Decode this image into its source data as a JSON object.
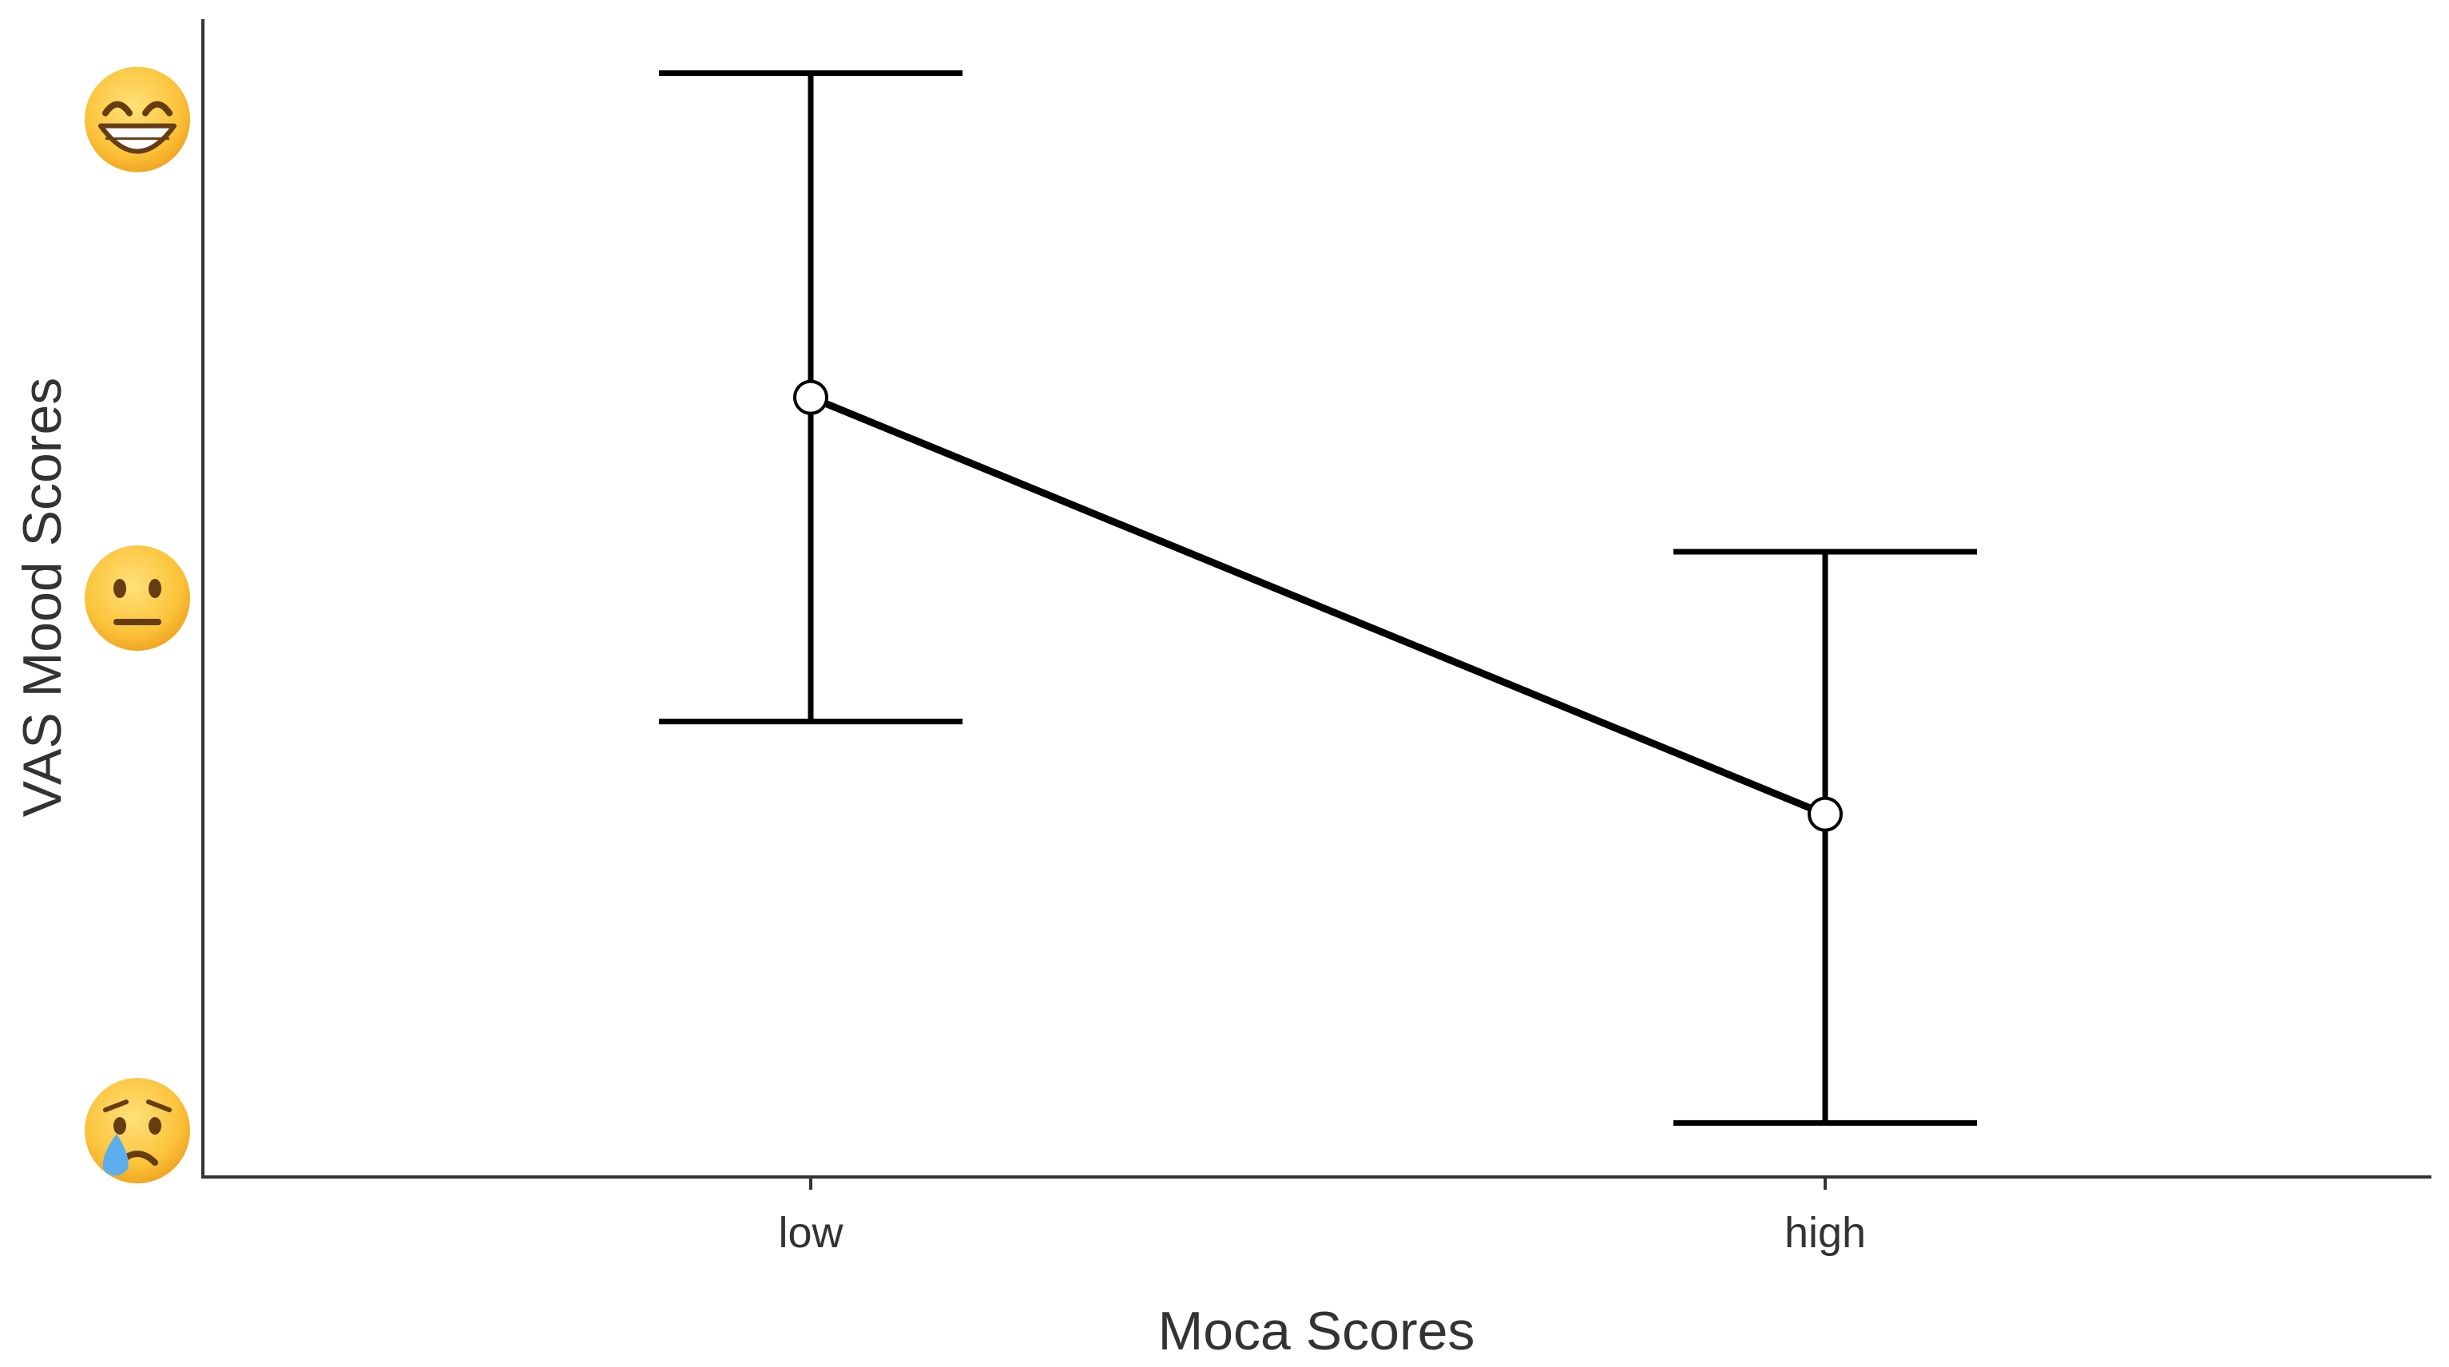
{
  "chart_data": {
    "type": "line",
    "title": "",
    "xlabel": "Moca Scores",
    "ylabel": "VAS Mood Scores",
    "categories": [
      "low",
      "high"
    ],
    "series": [
      {
        "values": [
          6.6,
          3.9
        ],
        "error_low": [
          4.5,
          1.9
        ],
        "error_high": [
          8.7,
          5.6
        ]
      }
    ],
    "ylim": [
      1.55,
      9.05
    ],
    "y_ticks": [
      {
        "value": 8.4,
        "icon": "grinning-face-emoji"
      },
      {
        "value": 5.3,
        "icon": "neutral-face-emoji"
      },
      {
        "value": 1.85,
        "icon": "crying-face-emoji"
      }
    ],
    "grid": false,
    "legend": "none",
    "colors": {
      "line": "#000000",
      "point_fill": "#ffffff",
      "axis": "#333333",
      "emoji_face": "#F8B42A",
      "emoji_features": "#663D12",
      "tear": "#5DADEC"
    }
  }
}
